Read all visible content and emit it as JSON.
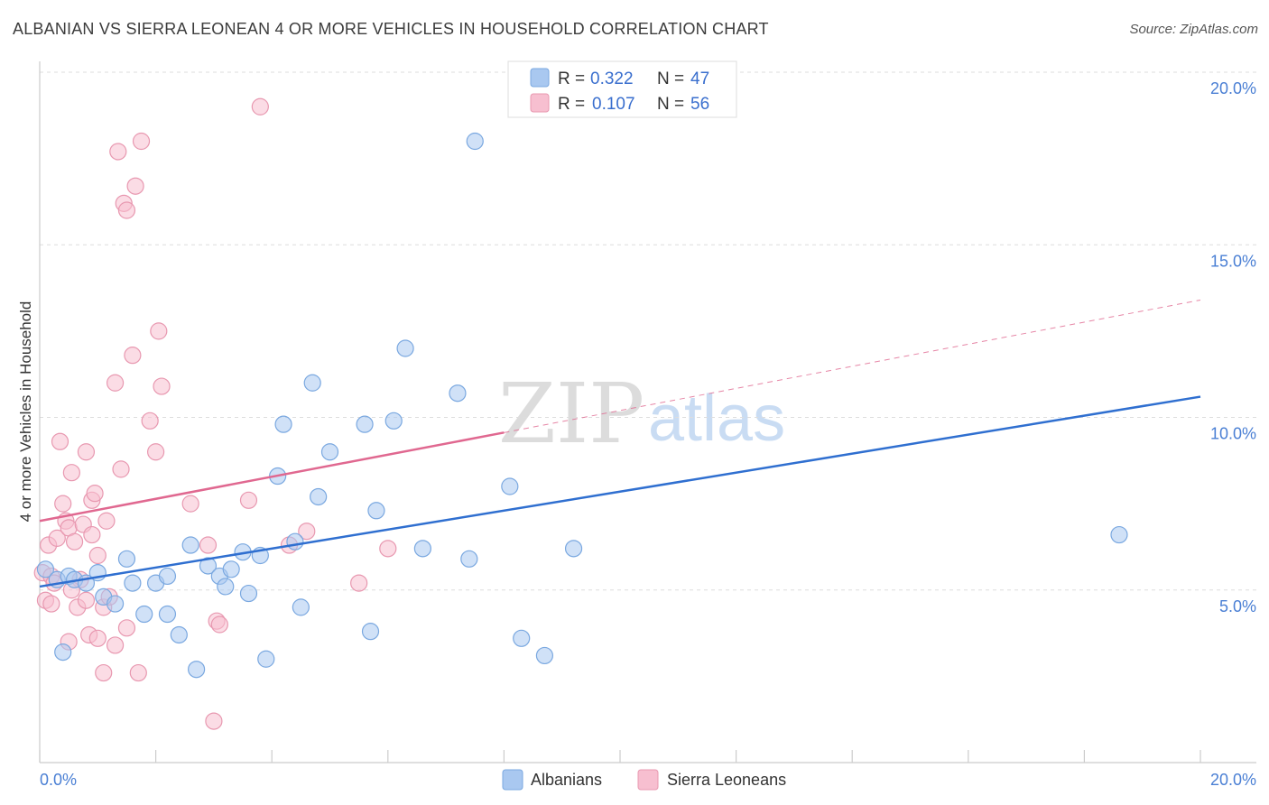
{
  "title": "ALBANIAN VS SIERRA LEONEAN 4 OR MORE VEHICLES IN HOUSEHOLD CORRELATION CHART",
  "source": "Source: ZipAtlas.com",
  "watermark": {
    "part1": "ZIP",
    "part2": "atlas"
  },
  "colors": {
    "blue": "#a9c8f0",
    "blue_stroke": "#7aa8e0",
    "blue_line": "#2f6fd0",
    "pink": "#f7bfd0",
    "pink_stroke": "#e898b0",
    "pink_line": "#e06890",
    "grid": "#dddddd",
    "axis_text": "#4a7fd4"
  },
  "legend": {
    "rows": [
      {
        "r_label": "R =",
        "r_value": "0.322",
        "n_label": "N =",
        "n_value": "47"
      },
      {
        "r_label": "R =",
        "r_value": "0.107",
        "n_label": "N =",
        "n_value": "56"
      }
    ]
  },
  "bottom_legend": [
    "Albanians",
    "Sierra Leoneans"
  ],
  "chart_data": {
    "type": "scatter",
    "title": "ALBANIAN VS SIERRA LEONEAN 4 OR MORE VEHICLES IN HOUSEHOLD CORRELATION CHART",
    "xlabel": "",
    "ylabel": "4 or more Vehicles in Household",
    "xlim": [
      0,
      20
    ],
    "ylim": [
      0,
      20
    ],
    "x_tick_labels": [
      "0.0%",
      "20.0%"
    ],
    "y_ticks": [
      5,
      10,
      15,
      20
    ],
    "y_tick_labels": [
      "5.0%",
      "10.0%",
      "15.0%",
      "20.0%"
    ],
    "grid": true,
    "legend_position": "top-center",
    "series": [
      {
        "name": "Albanians",
        "r": 0.322,
        "n": 47,
        "trend": {
          "x0": 0,
          "y0": 5.1,
          "x1": 20,
          "y1": 10.6,
          "dashed_from": null
        },
        "points": [
          [
            0.1,
            5.6
          ],
          [
            0.3,
            5.3
          ],
          [
            0.4,
            3.2
          ],
          [
            0.5,
            5.4
          ],
          [
            0.6,
            5.3
          ],
          [
            0.8,
            5.2
          ],
          [
            1.0,
            5.5
          ],
          [
            1.1,
            4.8
          ],
          [
            1.3,
            4.6
          ],
          [
            1.5,
            5.9
          ],
          [
            1.6,
            5.2
          ],
          [
            1.8,
            4.3
          ],
          [
            2.0,
            5.2
          ],
          [
            2.2,
            5.4
          ],
          [
            2.2,
            4.3
          ],
          [
            2.4,
            3.7
          ],
          [
            2.6,
            6.3
          ],
          [
            2.7,
            2.7
          ],
          [
            2.9,
            5.7
          ],
          [
            3.1,
            5.4
          ],
          [
            3.2,
            5.1
          ],
          [
            3.3,
            5.6
          ],
          [
            3.5,
            6.1
          ],
          [
            3.6,
            4.9
          ],
          [
            3.8,
            6.0
          ],
          [
            3.9,
            3.0
          ],
          [
            4.1,
            8.3
          ],
          [
            4.2,
            9.8
          ],
          [
            4.4,
            6.4
          ],
          [
            4.5,
            4.5
          ],
          [
            4.7,
            11.0
          ],
          [
            4.8,
            7.7
          ],
          [
            5.0,
            9.0
          ],
          [
            5.6,
            9.8
          ],
          [
            5.7,
            3.8
          ],
          [
            5.8,
            7.3
          ],
          [
            6.1,
            9.9
          ],
          [
            6.3,
            12.0
          ],
          [
            6.6,
            6.2
          ],
          [
            7.2,
            10.7
          ],
          [
            7.4,
            5.9
          ],
          [
            7.5,
            18.0
          ],
          [
            8.1,
            8.0
          ],
          [
            8.3,
            3.6
          ],
          [
            8.7,
            3.1
          ],
          [
            9.2,
            6.2
          ],
          [
            18.6,
            6.6
          ]
        ]
      },
      {
        "name": "Sierra Leoneans",
        "r": 0.107,
        "n": 56,
        "trend": {
          "x0": 0,
          "y0": 7.0,
          "x1": 20,
          "y1": 13.4,
          "dashed_from": 8.0
        },
        "points": [
          [
            0.05,
            5.5
          ],
          [
            0.1,
            4.7
          ],
          [
            0.15,
            6.3
          ],
          [
            0.2,
            5.4
          ],
          [
            0.25,
            5.2
          ],
          [
            0.3,
            6.5
          ],
          [
            0.35,
            9.3
          ],
          [
            0.4,
            7.5
          ],
          [
            0.45,
            7.0
          ],
          [
            0.5,
            3.5
          ],
          [
            0.5,
            6.8
          ],
          [
            0.55,
            8.4
          ],
          [
            0.6,
            6.4
          ],
          [
            0.65,
            4.5
          ],
          [
            0.7,
            5.3
          ],
          [
            0.75,
            6.9
          ],
          [
            0.8,
            4.7
          ],
          [
            0.8,
            9.0
          ],
          [
            0.85,
            3.7
          ],
          [
            0.9,
            7.6
          ],
          [
            0.9,
            6.6
          ],
          [
            0.95,
            7.8
          ],
          [
            1.0,
            6.0
          ],
          [
            1.0,
            3.6
          ],
          [
            1.1,
            4.5
          ],
          [
            1.1,
            2.6
          ],
          [
            1.15,
            7.0
          ],
          [
            1.2,
            4.8
          ],
          [
            1.3,
            3.4
          ],
          [
            1.3,
            11.0
          ],
          [
            1.35,
            17.7
          ],
          [
            1.4,
            8.5
          ],
          [
            1.45,
            16.2
          ],
          [
            1.5,
            3.9
          ],
          [
            1.5,
            16.0
          ],
          [
            1.6,
            11.8
          ],
          [
            1.65,
            16.7
          ],
          [
            1.7,
            2.6
          ],
          [
            1.75,
            18.0
          ],
          [
            1.9,
            9.9
          ],
          [
            2.0,
            9.0
          ],
          [
            2.05,
            12.5
          ],
          [
            2.1,
            10.9
          ],
          [
            2.6,
            7.5
          ],
          [
            2.9,
            6.3
          ],
          [
            3.0,
            1.2
          ],
          [
            3.05,
            4.1
          ],
          [
            3.1,
            4.0
          ],
          [
            3.6,
            7.6
          ],
          [
            3.8,
            19.0
          ],
          [
            4.3,
            6.3
          ],
          [
            4.6,
            6.7
          ],
          [
            5.5,
            5.2
          ],
          [
            6.0,
            6.2
          ],
          [
            0.2,
            4.6
          ],
          [
            0.55,
            5.0
          ]
        ]
      }
    ]
  }
}
